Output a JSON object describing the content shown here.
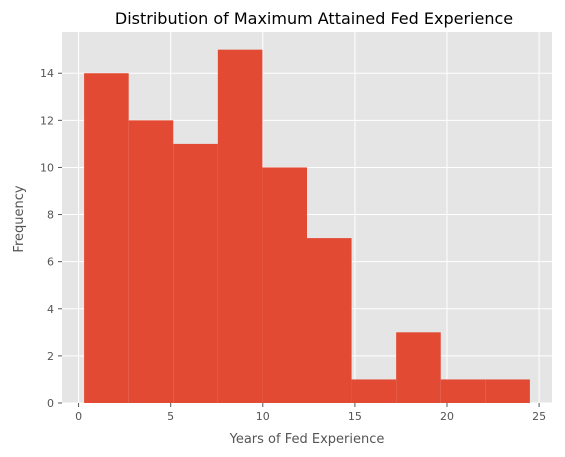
{
  "chart_data": {
    "type": "bar",
    "title": "Distribution of Maximum Attained Fed Experience",
    "xlabel": "Years of Fed Experience",
    "ylabel": "Frequency",
    "bins": [
      {
        "x0": 0.3,
        "x1": 2.72,
        "count": 14
      },
      {
        "x0": 2.72,
        "x1": 5.14,
        "count": 12
      },
      {
        "x0": 5.14,
        "x1": 7.56,
        "count": 11
      },
      {
        "x0": 7.56,
        "x1": 9.98,
        "count": 15
      },
      {
        "x0": 9.98,
        "x1": 12.4,
        "count": 10
      },
      {
        "x0": 12.4,
        "x1": 14.82,
        "count": 7
      },
      {
        "x0": 14.82,
        "x1": 17.24,
        "count": 1
      },
      {
        "x0": 17.24,
        "x1": 19.66,
        "count": 3
      },
      {
        "x0": 19.66,
        "x1": 22.08,
        "count": 1
      },
      {
        "x0": 22.08,
        "x1": 24.5,
        "count": 1
      }
    ],
    "xticks": [
      0,
      5,
      10,
      15,
      20,
      25
    ],
    "yticks": [
      0,
      2,
      4,
      6,
      8,
      10,
      12,
      14
    ],
    "xlim": [
      -0.9,
      25.7
    ],
    "ylim": [
      0,
      15.75
    ],
    "grid": true,
    "colors": {
      "bar": "#E24A33",
      "background": "#E5E5E5",
      "grid": "#FFFFFF"
    }
  }
}
